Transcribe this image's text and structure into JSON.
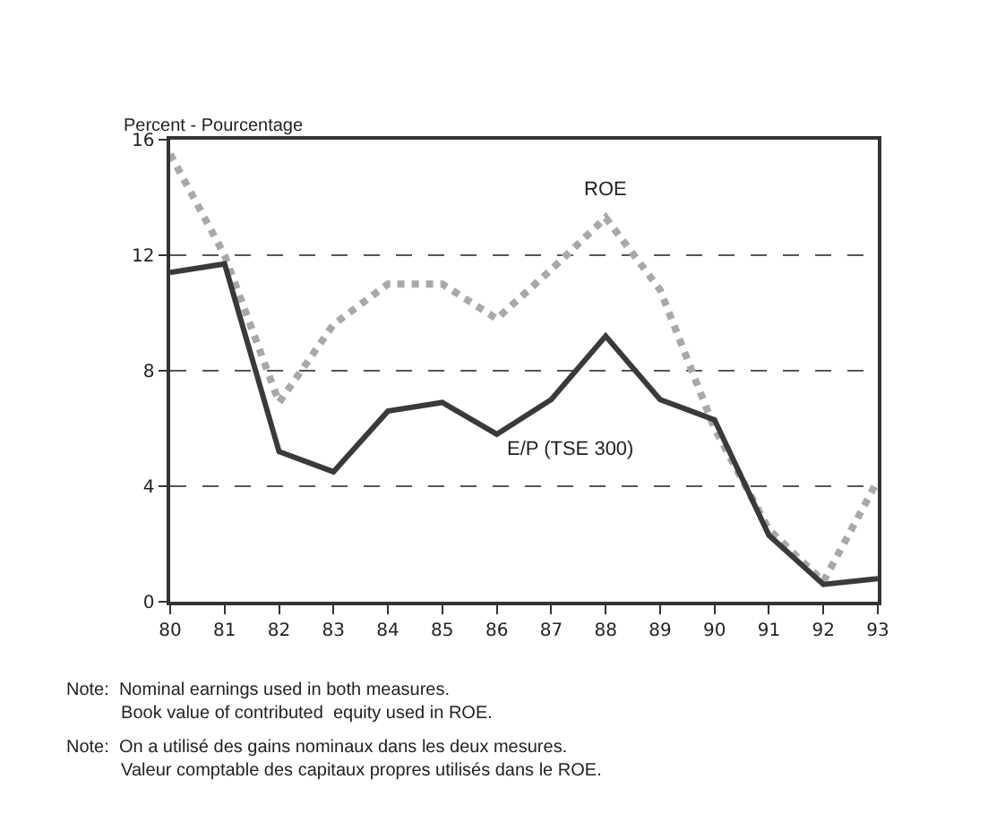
{
  "chart_data": {
    "type": "line",
    "ylabel": "Percent - Pourcentage",
    "x": [
      80,
      81,
      82,
      83,
      84,
      85,
      86,
      87,
      88,
      89,
      90,
      91,
      92,
      93
    ],
    "series": [
      {
        "name": "ROE",
        "color": "#a8a8a8",
        "line_style": "dotted",
        "values": [
          15.5,
          12.0,
          6.9,
          9.6,
          11.0,
          11.0,
          9.8,
          11.5,
          13.3,
          10.8,
          6.0,
          2.5,
          0.7,
          4.2
        ]
      },
      {
        "name": "E/P (TSE 300)",
        "color": "#3a3a3a",
        "line_style": "solid",
        "values": [
          11.4,
          11.7,
          5.2,
          4.5,
          6.6,
          6.9,
          5.8,
          7.0,
          9.2,
          7.0,
          6.3,
          2.3,
          0.6,
          0.8
        ]
      }
    ],
    "xlim": [
      80,
      93
    ],
    "xticks": [
      80,
      81,
      82,
      83,
      84,
      85,
      86,
      87,
      88,
      89,
      90,
      91,
      92,
      93
    ],
    "ylim": [
      0,
      16
    ],
    "yticks": [
      0,
      4,
      8,
      12,
      16
    ],
    "grid": "y",
    "legend": false,
    "marker": "none",
    "annotations": [
      "Note:  Nominal earnings used in both measures.\n           Book value of contributed  equity used in ROE.",
      "Note:  On a utilisé des gains nominaux dans les deux mesures.\n           Valeur comptable des capitaux propres utilisés dans le ROE."
    ]
  }
}
